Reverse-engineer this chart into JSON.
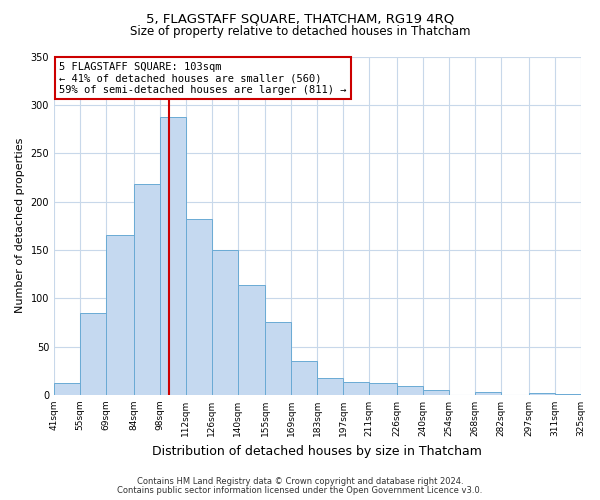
{
  "title": "5, FLAGSTAFF SQUARE, THATCHAM, RG19 4RQ",
  "subtitle": "Size of property relative to detached houses in Thatcham",
  "xlabel": "Distribution of detached houses by size in Thatcham",
  "ylabel": "Number of detached properties",
  "all_edges": [
    41,
    55,
    69,
    84,
    98,
    112,
    126,
    140,
    155,
    169,
    183,
    197,
    211,
    226,
    240,
    254,
    268,
    282,
    297,
    311,
    325
  ],
  "bar_heights": [
    12,
    85,
    165,
    218,
    287,
    182,
    150,
    114,
    75,
    35,
    18,
    13,
    12,
    9,
    5,
    0,
    3,
    0,
    2,
    1
  ],
  "bar_color": "#c5d9f0",
  "bar_edge_color": "#6aaad4",
  "vline_x": 103,
  "ylim": [
    0,
    350
  ],
  "yticks": [
    0,
    50,
    100,
    150,
    200,
    250,
    300,
    350
  ],
  "annotation_line1": "5 FLAGSTAFF SQUARE: 103sqm",
  "annotation_line2": "← 41% of detached houses are smaller (560)",
  "annotation_line3": "59% of semi-detached houses are larger (811) →",
  "footnote1": "Contains HM Land Registry data © Crown copyright and database right 2024.",
  "footnote2": "Contains public sector information licensed under the Open Government Licence v3.0.",
  "background_color": "#ffffff",
  "grid_color": "#c8d8ea",
  "title_fontsize": 9.5,
  "subtitle_fontsize": 8.5,
  "ylabel_fontsize": 8,
  "xlabel_fontsize": 9,
  "tick_fontsize": 6.5,
  "annotation_fontsize": 7.5,
  "footnote_fontsize": 6
}
